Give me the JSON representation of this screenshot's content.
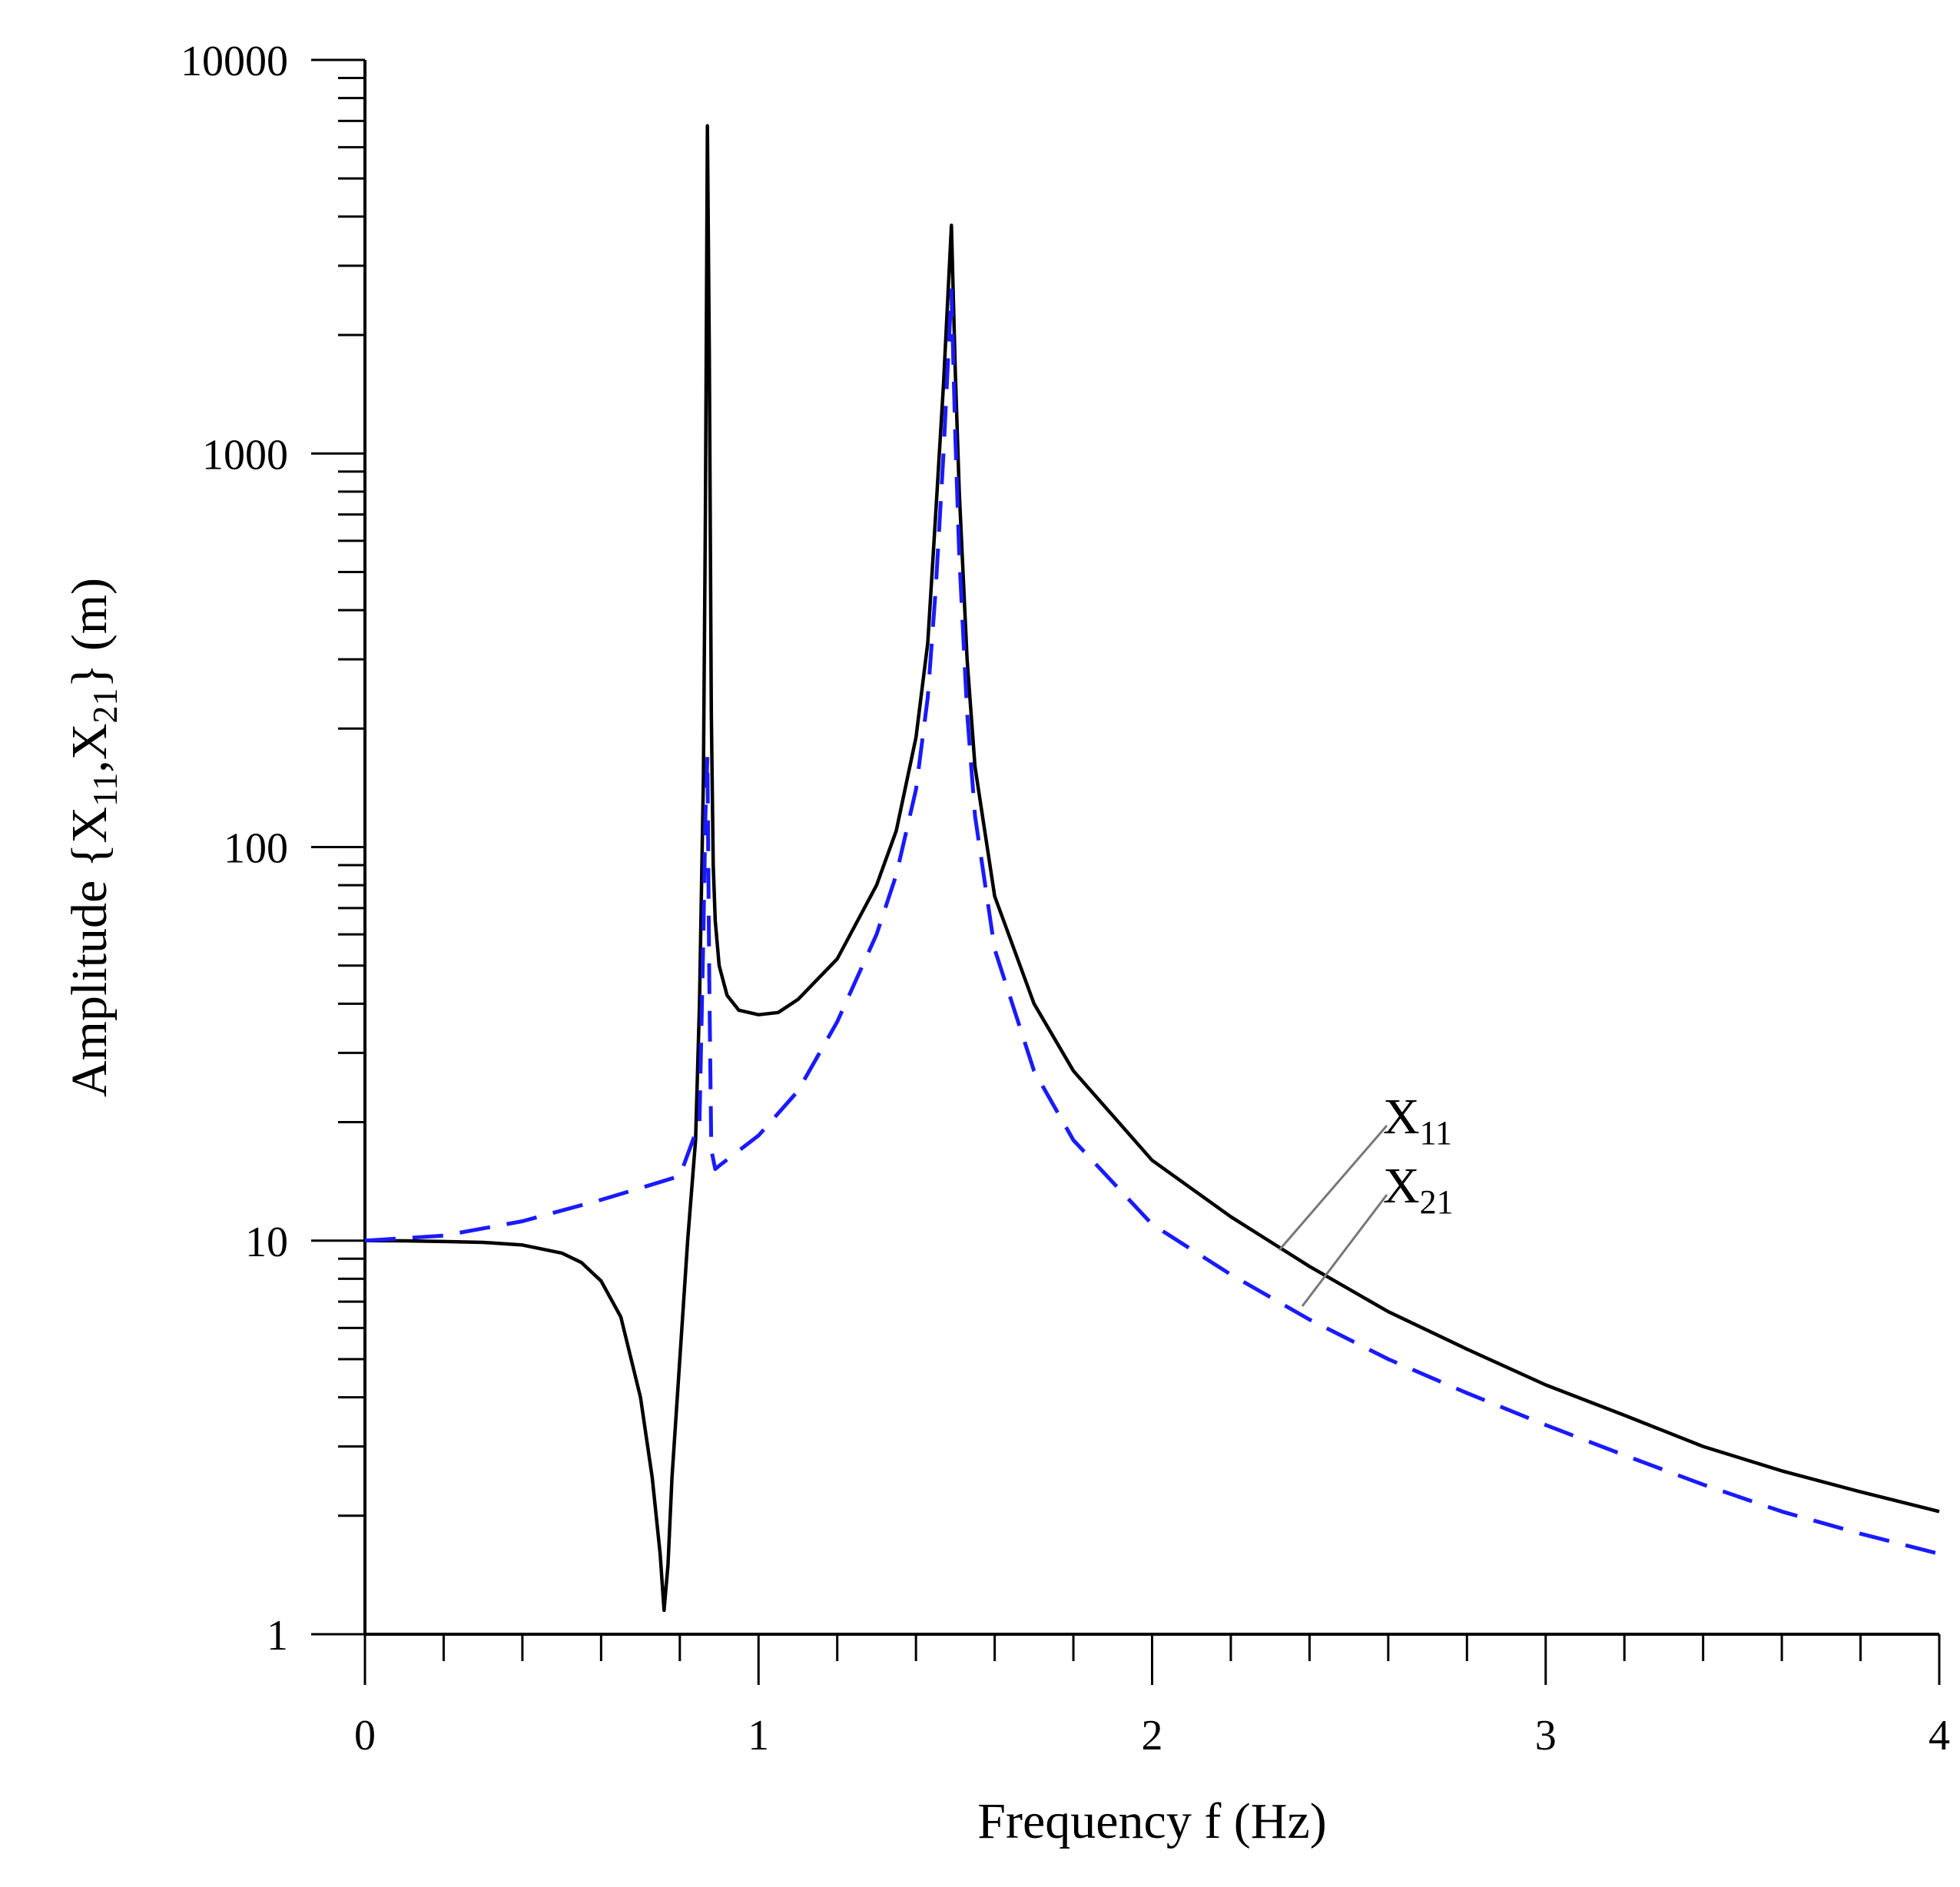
{
  "chart_data": {
    "type": "line",
    "title": "",
    "xlabel": "Frequency f (Hz)",
    "ylabel_parts": {
      "prefix": "Amplitude {X",
      "sub1": "11",
      "mid": ",X",
      "sub2": "21",
      "suffix": "} (m)"
    },
    "xscale": "linear",
    "yscale": "log",
    "xlim": [
      0,
      4
    ],
    "ylim": [
      1,
      10000
    ],
    "xticks": [
      "0",
      "1",
      "2",
      "3",
      "4"
    ],
    "yticks": [
      "1",
      "10",
      "100",
      "1000",
      "10000"
    ],
    "grid": false,
    "series": [
      {
        "name": "X11",
        "label_main": "X",
        "label_sub": "11",
        "color": "#000000",
        "style": "solid",
        "x": [
          0.0,
          0.1,
          0.2,
          0.3,
          0.4,
          0.5,
          0.55,
          0.6,
          0.65,
          0.7,
          0.73,
          0.75,
          0.76,
          0.77,
          0.78,
          0.8,
          0.82,
          0.84,
          0.85,
          0.86,
          0.865,
          0.87,
          0.875,
          0.88,
          0.885,
          0.89,
          0.9,
          0.92,
          0.95,
          1.0,
          1.05,
          1.1,
          1.2,
          1.3,
          1.35,
          1.4,
          1.43,
          1.45,
          1.47,
          1.49,
          1.5,
          1.51,
          1.53,
          1.55,
          1.6,
          1.7,
          1.8,
          2.0,
          2.2,
          2.4,
          2.6,
          2.8,
          3.0,
          3.2,
          3.4,
          3.6,
          3.8,
          4.0
        ],
        "y": [
          10.0,
          9.99,
          9.95,
          9.9,
          9.75,
          9.3,
          8.8,
          7.9,
          6.4,
          4.0,
          2.5,
          1.6,
          1.15,
          1.5,
          2.5,
          5.0,
          10.0,
          18.0,
          40.0,
          150.0,
          700.0,
          6800.0,
          1800.0,
          220.0,
          90.0,
          65.0,
          50.0,
          42.0,
          38.5,
          37.5,
          38.0,
          41.0,
          52.0,
          80.0,
          110.0,
          190.0,
          330.0,
          700.0,
          1500.0,
          3800.0,
          1600.0,
          800.0,
          300.0,
          160.0,
          75.0,
          40.0,
          27.0,
          16.0,
          11.5,
          8.6,
          6.6,
          5.3,
          4.3,
          3.6,
          3.0,
          2.6,
          2.3,
          2.05
        ]
      },
      {
        "name": "X21",
        "label_main": "X",
        "label_sub": "21",
        "color": "#1a1aff",
        "style": "dashed",
        "x": [
          0.0,
          0.2,
          0.4,
          0.6,
          0.7,
          0.8,
          0.85,
          0.86,
          0.865,
          0.87,
          0.875,
          0.88,
          0.89,
          0.9,
          1.0,
          1.1,
          1.2,
          1.3,
          1.35,
          1.4,
          1.43,
          1.45,
          1.47,
          1.49,
          1.5,
          1.51,
          1.53,
          1.55,
          1.6,
          1.7,
          1.8,
          2.0,
          2.2,
          2.4,
          2.6,
          2.8,
          3.0,
          3.2,
          3.4,
          3.6,
          3.8,
          4.0
        ],
        "y": [
          10.0,
          10.3,
          11.2,
          12.7,
          13.6,
          14.6,
          20.0,
          60.0,
          120.0,
          170.0,
          45.0,
          17.0,
          15.2,
          15.5,
          18.5,
          24.0,
          36.0,
          60.0,
          85.0,
          140.0,
          240.0,
          450.0,
          1000.0,
          2600.0,
          1100.0,
          550.0,
          220.0,
          120.0,
          55.0,
          27.0,
          18.0,
          11.0,
          8.2,
          6.3,
          5.0,
          4.1,
          3.4,
          2.85,
          2.4,
          2.05,
          1.8,
          1.6
        ]
      }
    ]
  }
}
